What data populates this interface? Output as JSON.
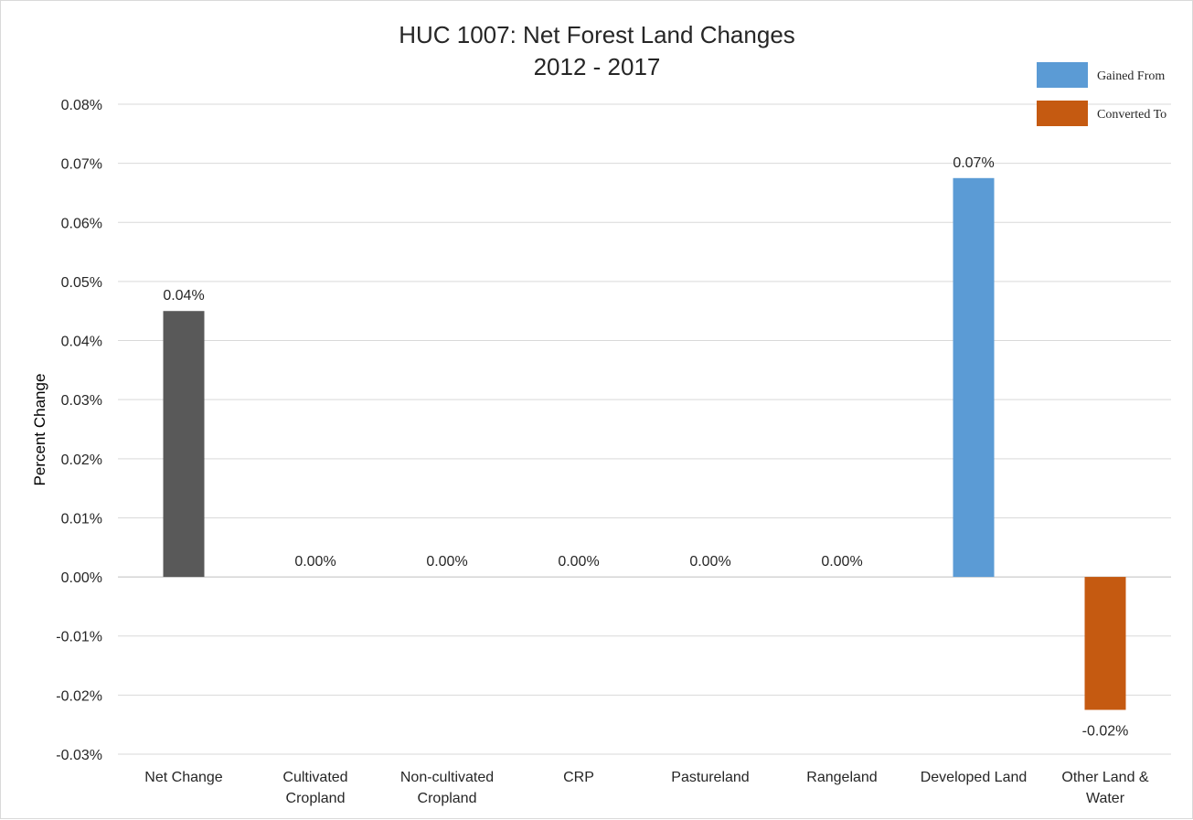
{
  "chart_data": {
    "type": "bar",
    "title": "HUC 1007: Net Forest Land Changes",
    "subtitle": "2012 - 2017",
    "ylabel": "Percent Change",
    "ylim": [
      -0.03,
      0.08
    ],
    "ytick_step": 0.01,
    "yticks": [
      "0.08%",
      "0.07%",
      "0.06%",
      "0.05%",
      "0.04%",
      "0.03%",
      "0.02%",
      "0.01%",
      "0.00%",
      "-0.01%",
      "-0.02%",
      "-0.03%"
    ],
    "grid": true,
    "legend_position": "top-right",
    "legend": [
      {
        "label": "Gained From",
        "color": "#5b9bd5"
      },
      {
        "label": "Converted To",
        "color": "#c55a11"
      }
    ],
    "categories": [
      [
        "Net Change"
      ],
      [
        "Cultivated",
        "Cropland"
      ],
      [
        "Non-cultivated",
        "Cropland"
      ],
      [
        "CRP"
      ],
      [
        "Pastureland"
      ],
      [
        "Rangeland"
      ],
      [
        "Developed Land"
      ],
      [
        "Other Land &",
        "Water"
      ]
    ],
    "values": [
      0.045,
      0.0,
      0.0,
      0.0,
      0.0,
      0.0,
      0.0675,
      -0.0225
    ],
    "data_labels": [
      "0.04%",
      "0.00%",
      "0.00%",
      "0.00%",
      "0.00%",
      "0.00%",
      "0.07%",
      "-0.02%"
    ],
    "colors": [
      "#595959",
      "#595959",
      "#595959",
      "#595959",
      "#595959",
      "#595959",
      "#5b9bd5",
      "#c55a11"
    ]
  }
}
